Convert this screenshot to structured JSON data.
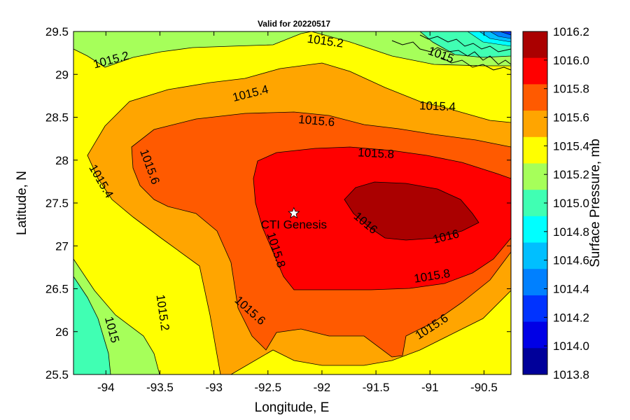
{
  "chart_data": {
    "type": "contour",
    "title": "Valid for 20220517",
    "xlabel": "Longitude, E",
    "ylabel": "Latitude, N",
    "colorbar_label": "Surface Pressure, mb",
    "xlim": [
      -94.3,
      -90.25
    ],
    "ylim": [
      25.5,
      29.5
    ],
    "x_ticks": [
      -94,
      -93.5,
      -93,
      -92.5,
      -92,
      -91.5,
      -91,
      -90.5
    ],
    "x_tick_labels": [
      "-94",
      "-93.5",
      "-93",
      "-92.5",
      "-92",
      "-91.5",
      "-91",
      "-90.5"
    ],
    "y_ticks": [
      25.5,
      26,
      26.5,
      27,
      27.5,
      28,
      28.5,
      29,
      29.5
    ],
    "y_tick_labels": [
      "25.5",
      "26",
      "26.5",
      "27",
      "27.5",
      "28",
      "28.5",
      "29",
      "29.5"
    ],
    "colorbar": {
      "min": 1013.8,
      "max": 1016.2,
      "tick_labels": [
        "1013.8",
        "1014.0",
        "1014.2",
        "1014.4",
        "1014.6",
        "1014.8",
        "1015.0",
        "1015.2",
        "1015.4",
        "1015.6",
        "1015.8",
        "1016.0",
        "1016.2"
      ],
      "colors": [
        "#00009a",
        "#0000e6",
        "#0033ff",
        "#0080ff",
        "#00bfff",
        "#00ffff",
        "#40ffb3",
        "#a6ff5a",
        "#ffff00",
        "#ffa500",
        "#ff5a00",
        "#ff0000",
        "#aa0000"
      ]
    },
    "contour_labels": [
      {
        "text": "1015.2",
        "lon": -93.95,
        "lat": 29.16,
        "angle": -15
      },
      {
        "text": "1015.2",
        "lon": -91.97,
        "lat": 29.38,
        "angle": 8
      },
      {
        "text": "1015",
        "lon": -90.9,
        "lat": 29.22,
        "angle": 20
      },
      {
        "text": "1015.4",
        "lon": -92.66,
        "lat": 28.77,
        "angle": -14
      },
      {
        "text": "1015.4",
        "lon": -90.93,
        "lat": 28.62,
        "angle": 2
      },
      {
        "text": "1015.6",
        "lon": -92.05,
        "lat": 28.45,
        "angle": 5
      },
      {
        "text": "1015.8",
        "lon": -91.5,
        "lat": 28.07,
        "angle": 3
      },
      {
        "text": "1015.6",
        "lon": -93.6,
        "lat": 27.92,
        "angle": 70
      },
      {
        "text": "1015.4",
        "lon": -94.05,
        "lat": 27.75,
        "angle": 60
      },
      {
        "text": "1016",
        "lon": -91.6,
        "lat": 27.26,
        "angle": 40
      },
      {
        "text": "1016",
        "lon": -90.85,
        "lat": 27.1,
        "angle": -14
      },
      {
        "text": "1015.8",
        "lon": -92.43,
        "lat": 26.95,
        "angle": 72
      },
      {
        "text": "1015.8",
        "lon": -90.98,
        "lat": 26.64,
        "angle": -9
      },
      {
        "text": "1015.6",
        "lon": -92.67,
        "lat": 26.24,
        "angle": 42
      },
      {
        "text": "1015.6",
        "lon": -90.98,
        "lat": 26.05,
        "angle": -33
      },
      {
        "text": "1015.2",
        "lon": -93.48,
        "lat": 26.22,
        "angle": 82
      },
      {
        "text": "1015",
        "lon": -93.95,
        "lat": 26.02,
        "angle": 75
      }
    ],
    "marker": {
      "label": "CTI Genesis",
      "lon": -92.26,
      "lat": 27.38,
      "symbol": "star"
    }
  }
}
